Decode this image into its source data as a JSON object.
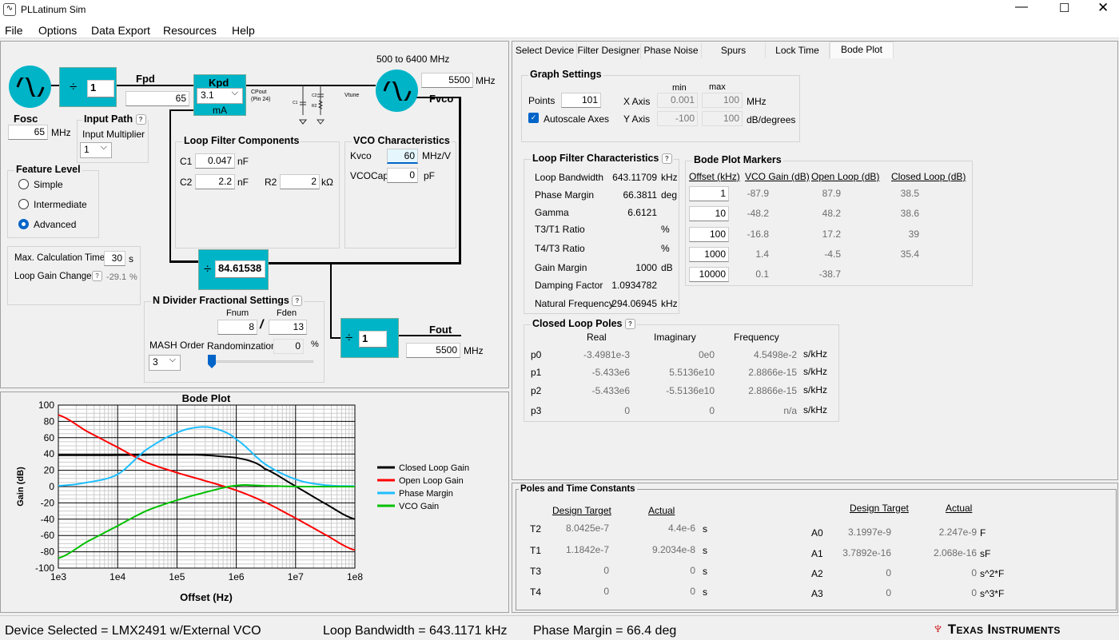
{
  "window": {
    "title": "PLLatinum Sim"
  },
  "menu": [
    "File",
    "Options",
    "Data Export",
    "Resources",
    "Help"
  ],
  "diagram": {
    "osc_div": "1",
    "fpd_label": "Fpd",
    "fpd_value": "65",
    "mhz": "MHz",
    "kpd_label": "Kpd",
    "kpd_value": "3.1",
    "kpd_unit": "mA",
    "cpout": "CPout",
    "cpout_pin": "(Pin 24)",
    "vtune": "Vtune",
    "c1": "C1",
    "c2": "C2",
    "r2": "R2",
    "vco_range": "500 to 6400 MHz",
    "fvco_value": "5500",
    "fvco_label": "Fvco",
    "fosc_label": "Fosc",
    "fosc_value": "65",
    "n_div": "84.61538",
    "out_div": "1",
    "fout_label": "Fout",
    "fout_value": "5500"
  },
  "input_path": {
    "title": "Input Path",
    "help": "?",
    "mult_label": "Input Multiplier",
    "mult_value": "1"
  },
  "feature_level": {
    "title": "Feature Level",
    "options": [
      "Simple",
      "Intermediate",
      "Advanced"
    ],
    "selected": "Advanced"
  },
  "calc": {
    "max_time_label": "Max. Calculation Time",
    "max_time": "30",
    "s": "s",
    "loop_gain_label": "Loop Gain Change",
    "help": "?",
    "loop_gain": "-29.1",
    "pct": "%"
  },
  "loop_filter": {
    "title": "Loop Filter Components",
    "c1_label": "C1",
    "c1": "0.047",
    "c2_label": "C2",
    "c2": "2.2",
    "nf": "nF",
    "r2_label": "R2",
    "r2": "2",
    "kohm": "kΩ"
  },
  "vco": {
    "title": "VCO Characteristics",
    "kvco_label": "Kvco",
    "kvco": "60",
    "kvco_unit": "MHz/V",
    "cap_label": "VCOCap",
    "cap": "0",
    "cap_unit": "pF"
  },
  "ndiv": {
    "title": "N Divider Fractional Settings",
    "help": "?",
    "fnum_label": "Fnum",
    "fden_label": "Fden",
    "fnum": "8",
    "slash": "/",
    "fden": "13",
    "mash_label": "MASH Order",
    "mash": "3",
    "rand_label": "Randominzation",
    "rand": "0",
    "pct": "%"
  },
  "tabs": [
    "Select Device",
    "Filter Designer",
    "Phase Noise",
    "Spurs",
    "Lock Time",
    "Bode Plot"
  ],
  "active_tab": "Bode Plot",
  "graph_settings": {
    "title": "Graph Settings",
    "points_label": "Points",
    "points": "101",
    "autoscale_label": "Autoscale Axes",
    "autoscale": true,
    "min": "min",
    "max": "max",
    "x_label": "X Axis",
    "x_min": "0.001",
    "x_max": "100",
    "x_unit": "MHz",
    "y_label": "Y Axis",
    "y_min": "-100",
    "y_max": "100",
    "y_unit": "dB/degrees"
  },
  "lf_char": {
    "title": "Loop Filter Characteristics",
    "help": "?",
    "rows": [
      {
        "label": "Loop Bandwidth",
        "value": "643.11709",
        "unit": "kHz"
      },
      {
        "label": "Phase Margin",
        "value": "66.3811",
        "unit": "deg"
      },
      {
        "label": "Gamma",
        "value": "6.6121",
        "unit": ""
      },
      {
        "label": "T3/T1 Ratio",
        "value": "",
        "unit": "%"
      },
      {
        "label": "T4/T3 Ratio",
        "value": "",
        "unit": "%"
      },
      {
        "label": "Gain Margin",
        "value": "1000",
        "unit": "dB"
      },
      {
        "label": "Damping Factor",
        "value": "1.0934782",
        "unit": ""
      },
      {
        "label": "Natural Frequency",
        "value": "294.06945",
        "unit": "kHz"
      }
    ]
  },
  "markers": {
    "title": "Bode Plot Markers",
    "headers": [
      "Offset (kHz)",
      "VCO Gain (dB)",
      "Open Loop (dB)",
      "Closed Loop (dB)"
    ],
    "rows": [
      [
        "1",
        "-87.9",
        "87.9",
        "38.5"
      ],
      [
        "10",
        "-48.2",
        "48.2",
        "38.6"
      ],
      [
        "100",
        "-16.8",
        "17.2",
        "39"
      ],
      [
        "1000",
        "1.4",
        "-4.5",
        "35.4"
      ],
      [
        "10000",
        "0.1",
        "-38.7",
        ""
      ]
    ]
  },
  "poles": {
    "title": "Closed Loop Poles",
    "help": "?",
    "headers": [
      "Real",
      "Imaginary",
      "Frequency"
    ],
    "unit": "s/kHz",
    "rows": [
      [
        "p0",
        "-3.4981e-3",
        "0e0",
        "4.5498e-2"
      ],
      [
        "p1",
        "-5.433e6",
        "5.5136e10",
        "2.8866e-15"
      ],
      [
        "p2",
        "-5.433e6",
        "-5.5136e10",
        "2.8866e-15"
      ],
      [
        "p3",
        "0",
        "0",
        "n/a"
      ]
    ]
  },
  "time_constants": {
    "title": "Poles and Time Constants",
    "design": "Design Target",
    "actual": "Actual",
    "t_rows": [
      [
        "T2",
        "8.0425e-7",
        "4.4e-6",
        "s"
      ],
      [
        "T1",
        "1.1842e-7",
        "9.2034e-8",
        "s"
      ],
      [
        "T3",
        "0",
        "0",
        "s"
      ],
      [
        "T4",
        "0",
        "0",
        "s"
      ]
    ],
    "a_rows": [
      [
        "A0",
        "3.1997e-9",
        "2.247e-9",
        "F"
      ],
      [
        "A1",
        "3.7892e-16",
        "2.068e-16",
        "sF"
      ],
      [
        "A2",
        "0",
        "0",
        "s^2*F"
      ],
      [
        "A3",
        "0",
        "0",
        "s^3*F"
      ]
    ]
  },
  "status": {
    "device": "Device Selected = LMX2491 w/External VCO",
    "bandwidth": "Loop Bandwidth = 643.1171 kHz",
    "phase_margin": "Phase Margin = 66.4 deg",
    "logo": "Texas Instruments"
  },
  "chart_data": {
    "type": "line",
    "title": "Bode Plot",
    "xlabel": "Offset (Hz)",
    "ylabel": "Gain (dB)",
    "xscale": "log",
    "xlim": [
      1000,
      100000000
    ],
    "ylim": [
      -100,
      100
    ],
    "xticks": [
      "1e3",
      "1e4",
      "1e5",
      "1e6",
      "1e7",
      "1e8"
    ],
    "yticks": [
      "100",
      "80",
      "60",
      "40",
      "20",
      "0",
      "-20",
      "-40",
      "-60",
      "-80",
      "-100"
    ],
    "legend": "right",
    "grid": true,
    "series": [
      {
        "name": "Closed Loop Gain",
        "color": "#000000",
        "x": [
          1000.0,
          10000.0,
          100000.0,
          300000.0,
          1000000.0,
          1800000.0,
          3000000.0,
          10000000.0,
          30000000.0,
          100000000.0
        ],
        "y": [
          38.5,
          38.6,
          39,
          38.5,
          35.4,
          31,
          22,
          0.5,
          -20,
          -40
        ]
      },
      {
        "name": "Open Loop Gain",
        "color": "#ff0000",
        "x": [
          1000.0,
          3000.0,
          10000.0,
          30000.0,
          100000.0,
          300000.0,
          1000000.0,
          3000000.0,
          10000000.0,
          30000000.0,
          100000000.0
        ],
        "y": [
          87.9,
          68,
          48.2,
          30,
          17.2,
          7,
          -4.5,
          -19,
          -38.7,
          -58,
          -78
        ]
      },
      {
        "name": "Phase Margin",
        "color": "#1ebeff",
        "x": [
          1000.0,
          3000.0,
          10000.0,
          30000.0,
          100000.0,
          250000.0,
          500000.0,
          1000000.0,
          3000000.0,
          10000000.0,
          30000000.0,
          100000000.0
        ],
        "y": [
          1,
          5,
          15,
          45,
          66,
          73,
          70,
          58,
          28,
          9,
          2,
          0.5
        ]
      },
      {
        "name": "VCO Gain",
        "color": "#00c000",
        "x": [
          1000.0,
          3000.0,
          10000.0,
          30000.0,
          100000.0,
          300000.0,
          1000000.0,
          3000000.0,
          10000000.0,
          100000000.0
        ],
        "y": [
          -87.9,
          -68,
          -48.2,
          -30,
          -16.8,
          -7,
          1.4,
          1,
          0.1,
          0
        ]
      }
    ]
  }
}
